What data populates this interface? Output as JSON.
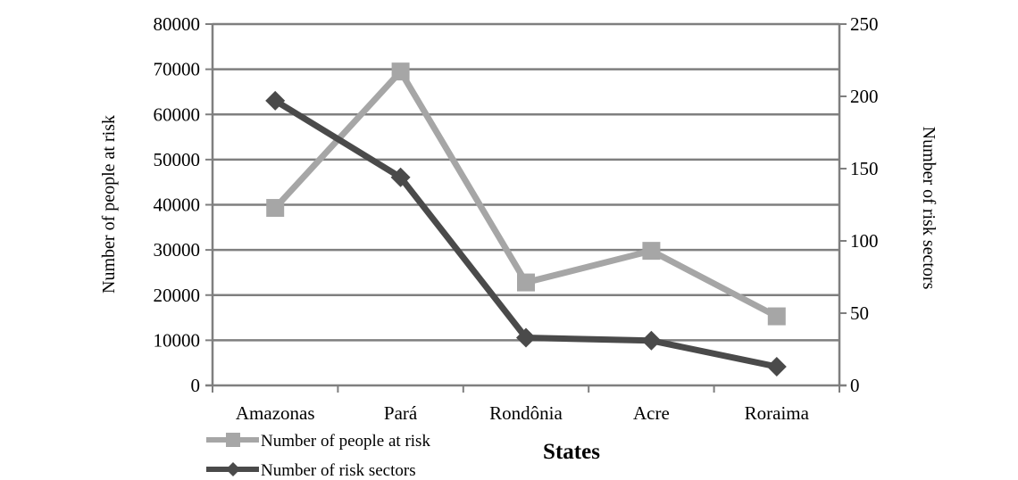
{
  "chart_data": {
    "type": "line",
    "xlabel": "States",
    "ylabel": "Number of people at risk",
    "y2label": "Number of risk sectors",
    "categories": [
      "Amazonas",
      "Pará",
      "Rondônia",
      "Acre",
      "Roraima"
    ],
    "ylim": [
      0,
      80000
    ],
    "y2lim": [
      0,
      250
    ],
    "yticks": [
      "0",
      "10000",
      "20000",
      "30000",
      "40000",
      "50000",
      "60000",
      "70000",
      "80000"
    ],
    "y2ticks": [
      "0",
      "50",
      "100",
      "150",
      "200",
      "250"
    ],
    "grid": true,
    "legend_position": "bottom-left",
    "series": [
      {
        "name": "Number of people at risk",
        "axis": "left",
        "marker": "square",
        "color": "#a6a6a6",
        "values": [
          39300,
          69500,
          22800,
          29800,
          15300
        ]
      },
      {
        "name": "Number of risk sectors",
        "axis": "right",
        "marker": "diamond",
        "color": "#4a4a4a",
        "values": [
          197,
          144,
          33,
          31,
          13
        ]
      }
    ]
  }
}
